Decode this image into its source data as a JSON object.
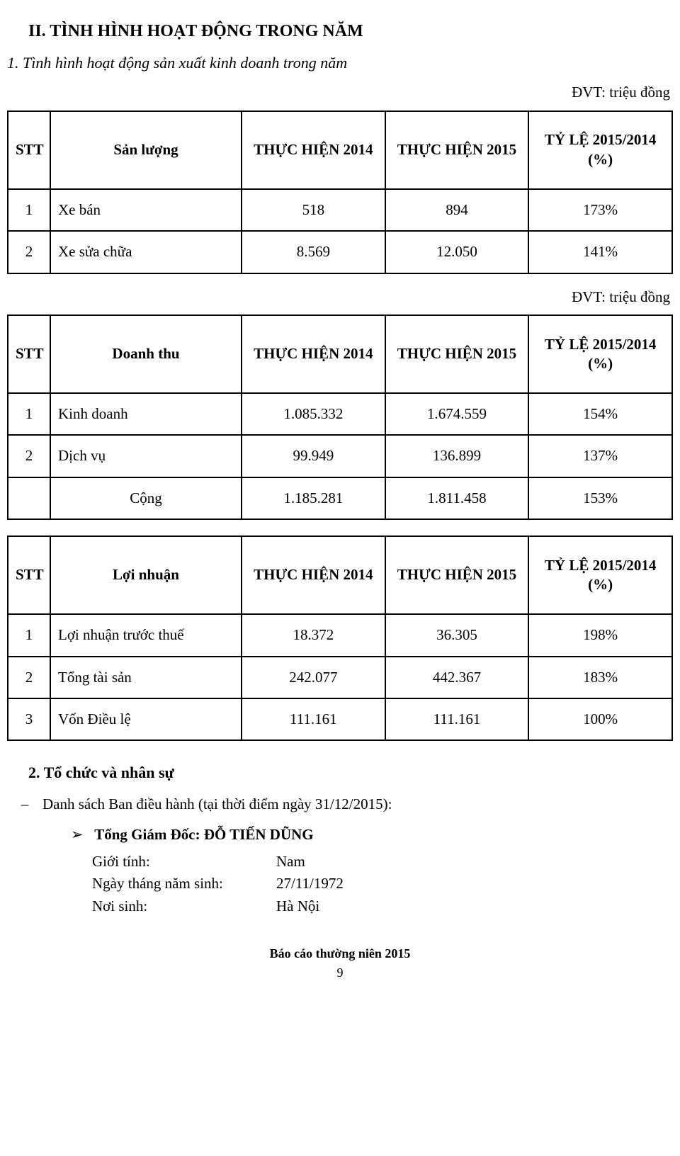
{
  "heading": "II.  TÌNH HÌNH HOẠT ĐỘNG TRONG NĂM",
  "subheading1": "1.  Tình hình hoạt động sản xuất kinh doanh trong năm",
  "unitNote": "ĐVT: triệu đồng",
  "table1": {
    "headers": {
      "stt": "STT",
      "name": "Sản lượng",
      "v2014": "THỰC HIỆN 2014",
      "v2015": "THỰC HIỆN 2015",
      "ratio": "TỶ LỆ 2015/2014 (%)"
    },
    "rows": [
      {
        "stt": "1",
        "name": "Xe bán",
        "v2014": "518",
        "v2015": "894",
        "ratio": "173%"
      },
      {
        "stt": "2",
        "name": "Xe sửa chữa",
        "v2014": "8.569",
        "v2015": "12.050",
        "ratio": "141%"
      }
    ]
  },
  "table2": {
    "headers": {
      "stt": "STT",
      "name": "Doanh thu",
      "v2014": "THỰC HIỆN 2014",
      "v2015": "THỰC HIỆN 2015",
      "ratio": "TỶ LỆ 2015/2014 (%)"
    },
    "rows": [
      {
        "stt": "1",
        "name": "Kinh doanh",
        "v2014": "1.085.332",
        "v2015": "1.674.559",
        "ratio": "154%"
      },
      {
        "stt": "2",
        "name": "Dịch vụ",
        "v2014": "99.949",
        "v2015": "136.899",
        "ratio": "137%"
      },
      {
        "stt": "",
        "name": "Cộng",
        "v2014": "1.185.281",
        "v2015": "1.811.458",
        "ratio": "153%",
        "nameCentered": true
      }
    ]
  },
  "table3": {
    "headers": {
      "stt": "STT",
      "name": "Lợi nhuận",
      "v2014": "THỰC HIỆN 2014",
      "v2015": "THỰC HIỆN 2015",
      "ratio": "TỶ LỆ 2015/2014 (%)"
    },
    "rows": [
      {
        "stt": "1",
        "name": "Lợi nhuận trước thuế",
        "v2014": "18.372",
        "v2015": "36.305",
        "ratio": "198%"
      },
      {
        "stt": "2",
        "name": "Tổng tài sản",
        "v2014": "242.077",
        "v2015": "442.367",
        "ratio": "183%"
      },
      {
        "stt": "3",
        "name": "Vốn Điều lệ",
        "v2014": "111.161",
        "v2015": "111.161",
        "ratio": "100%"
      }
    ]
  },
  "section2": "2.  Tổ chức và nhân sự",
  "dashLine": "Danh sách Ban điều hành (tại thời điểm ngày 31/12/2015):",
  "director": {
    "title": "Tổng Giám Đốc:",
    "name": "ĐỖ TIẾN DŨNG"
  },
  "info": [
    {
      "label": "Giới tính:",
      "value": "Nam"
    },
    {
      "label": "Ngày tháng năm sinh:",
      "value": "27/11/1972"
    },
    {
      "label": "Nơi sinh:",
      "value": "Hà Nội"
    }
  ],
  "footer": "Báo cáo thường niên 2015",
  "pagenum": "9"
}
